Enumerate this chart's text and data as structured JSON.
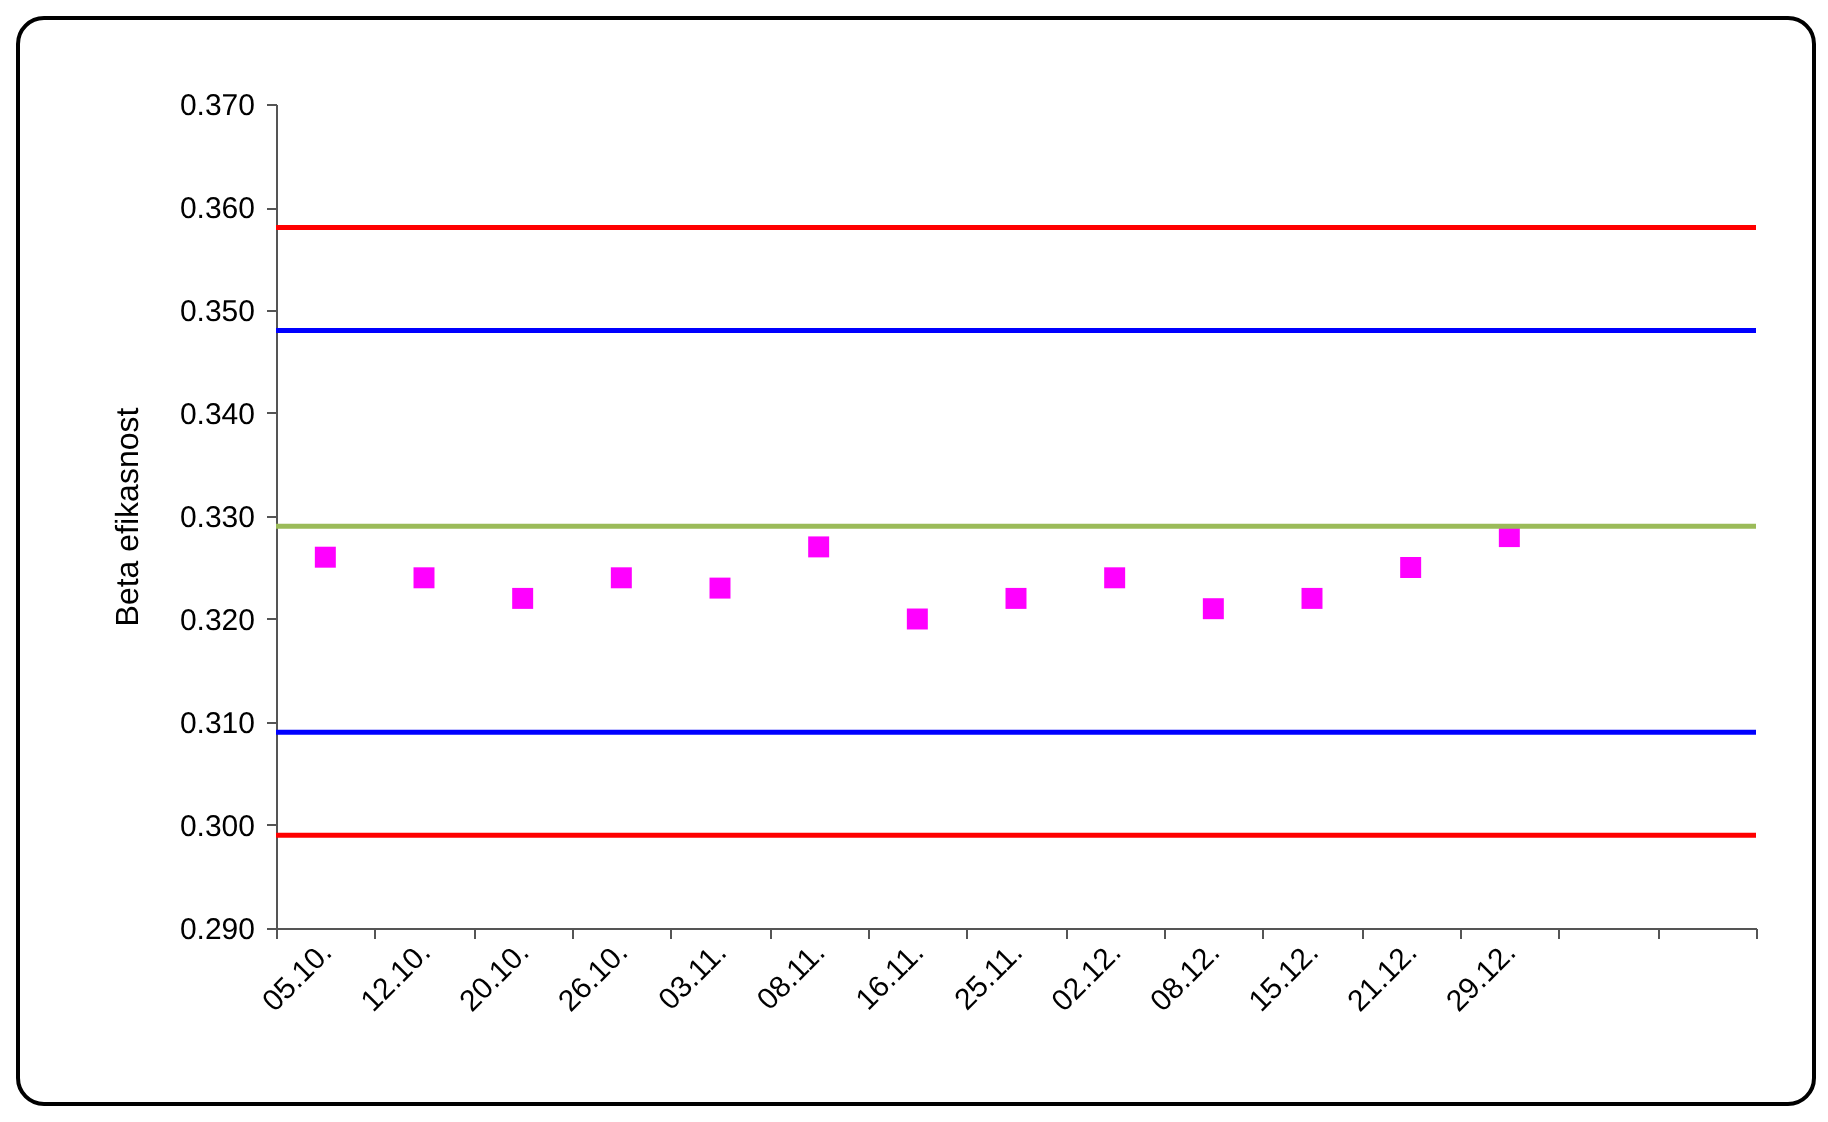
{
  "chart_data": {
    "type": "scatter",
    "ylabel": "Beta efikasnost",
    "categories": [
      "05.10.",
      "12.10.",
      "20.10.",
      "26.10.",
      "03.11.",
      "08.11.",
      "16.11.",
      "25.11.",
      "02.12.",
      "08.12.",
      "15.12.",
      "21.12.",
      "29.12.",
      null,
      null
    ],
    "series": [
      {
        "color": "#ff00ff",
        "values": [
          0.326,
          0.324,
          0.322,
          0.324,
          0.323,
          0.327,
          0.32,
          0.322,
          0.324,
          0.321,
          0.322,
          0.325,
          0.328,
          null,
          null
        ]
      }
    ],
    "ylim": [
      0.29,
      0.37
    ],
    "yticks": [
      {
        "value": 0.29,
        "label": "0.290"
      },
      {
        "value": 0.3,
        "label": "0.300"
      },
      {
        "value": 0.31,
        "label": "0.310"
      },
      {
        "value": 0.32,
        "label": "0.320"
      },
      {
        "value": 0.33,
        "label": "0.330"
      },
      {
        "value": 0.34,
        "label": "0.340"
      },
      {
        "value": 0.35,
        "label": "0.350"
      },
      {
        "value": 0.36,
        "label": "0.360"
      },
      {
        "value": 0.37,
        "label": "0.370"
      }
    ],
    "ref_lines": [
      {
        "axis": "y",
        "value": 0.358,
        "color": "#ff0000"
      },
      {
        "axis": "y",
        "value": 0.348,
        "color": "#0000ff"
      },
      {
        "axis": "y",
        "value": 0.329,
        "color": "#9bbb59"
      },
      {
        "axis": "y",
        "value": 0.309,
        "color": "#0000ff"
      },
      {
        "axis": "y",
        "value": 0.299,
        "color": "#ff0000"
      }
    ],
    "marker": "square",
    "grid": false,
    "legend": false
  }
}
